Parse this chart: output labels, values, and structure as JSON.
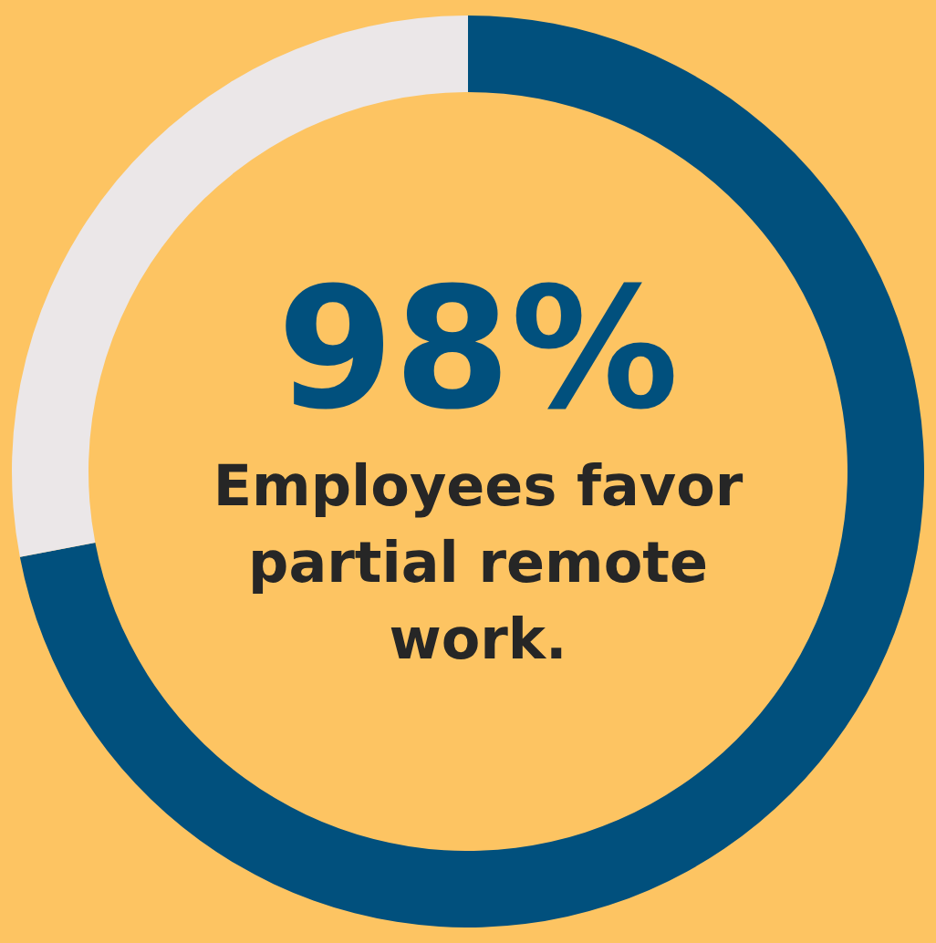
{
  "chart_data": {
    "type": "donut",
    "title": "98%",
    "subtitle": "Employees favor partial remote work.",
    "categories": [
      null,
      null
    ],
    "values": [
      72,
      28
    ],
    "colors": [
      "#01507d",
      "#ebe7e8"
    ]
  }
}
